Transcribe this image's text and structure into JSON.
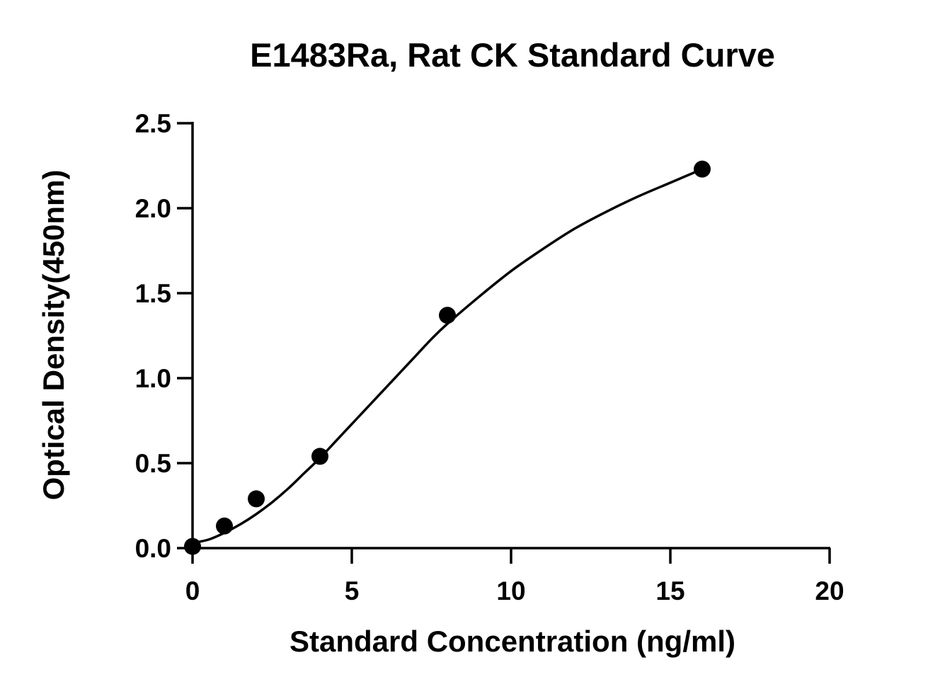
{
  "chart_data": {
    "type": "scatter",
    "title": "E1483Ra, Rat CK Standard Curve",
    "xlabel": "Standard Concentration (ng/ml)",
    "ylabel": "Optical Density(450nm)",
    "xlim": [
      0,
      20
    ],
    "ylim": [
      0,
      2.5
    ],
    "x_ticks": [
      0,
      5,
      10,
      15,
      20
    ],
    "y_ticks": [
      0.0,
      0.5,
      1.0,
      1.5,
      2.0,
      2.5
    ],
    "x_tick_labels": [
      "0",
      "5",
      "10",
      "15",
      "20"
    ],
    "y_tick_labels": [
      "0.0",
      "0.5",
      "1.0",
      "1.5",
      "2.0",
      "2.5"
    ],
    "grid": false,
    "legend": "none",
    "series": [
      {
        "points": [
          {
            "x": 0,
            "y": 0.01
          },
          {
            "x": 1,
            "y": 0.13
          },
          {
            "x": 2,
            "y": 0.29
          },
          {
            "x": 4,
            "y": 0.54
          },
          {
            "x": 8,
            "y": 1.37
          },
          {
            "x": 16,
            "y": 2.23
          }
        ]
      }
    ],
    "fit_curve": {
      "type": "four-parameter logistic",
      "points": [
        {
          "x": 0,
          "y": 0.03
        },
        {
          "x": 0.5,
          "y": 0.05
        },
        {
          "x": 1,
          "y": 0.09
        },
        {
          "x": 1.5,
          "y": 0.14
        },
        {
          "x": 2,
          "y": 0.2
        },
        {
          "x": 2.5,
          "y": 0.27
        },
        {
          "x": 3,
          "y": 0.35
        },
        {
          "x": 3.5,
          "y": 0.44
        },
        {
          "x": 4,
          "y": 0.53
        },
        {
          "x": 4.5,
          "y": 0.63
        },
        {
          "x": 5,
          "y": 0.73
        },
        {
          "x": 5.5,
          "y": 0.83
        },
        {
          "x": 6,
          "y": 0.93
        },
        {
          "x": 6.5,
          "y": 1.03
        },
        {
          "x": 7,
          "y": 1.13
        },
        {
          "x": 7.5,
          "y": 1.23
        },
        {
          "x": 8,
          "y": 1.32
        },
        {
          "x": 9,
          "y": 1.48
        },
        {
          "x": 10,
          "y": 1.63
        },
        {
          "x": 11,
          "y": 1.76
        },
        {
          "x": 12,
          "y": 1.88
        },
        {
          "x": 13,
          "y": 1.98
        },
        {
          "x": 14,
          "y": 2.07
        },
        {
          "x": 15,
          "y": 2.15
        },
        {
          "x": 16,
          "y": 2.23
        }
      ]
    },
    "colors": {
      "points": "#000000",
      "curve": "#000000",
      "axes": "#000000",
      "background": "#ffffff"
    }
  }
}
